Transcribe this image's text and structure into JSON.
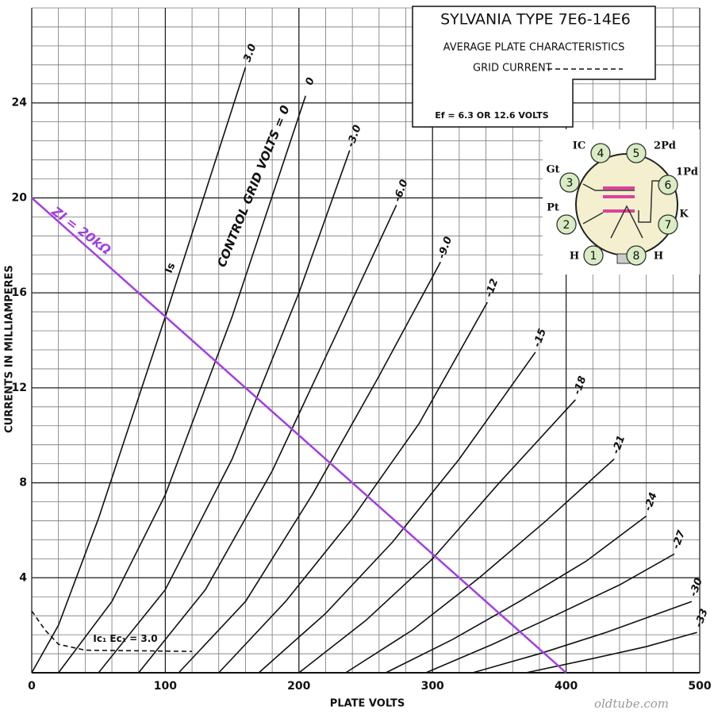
{
  "chart_data": {
    "type": "line",
    "title": "SYLVANIA TYPE 7E6-14E6",
    "subtitle": "AVERAGE PLATE CHARACTERISTICS",
    "grid_current_label": "GRID CURRENT",
    "heater_note": "Ef = 6.3 OR 12.6 VOLTS",
    "x_label": "PLATE VOLTS",
    "y_label": "CURRENTS IN MILLIAMPERES",
    "xlim": [
      0,
      500
    ],
    "ylim": [
      0,
      28
    ],
    "xticks": [
      0,
      100,
      200,
      300,
      400,
      500
    ],
    "yticks": [
      4,
      8,
      12,
      16,
      20,
      24
    ],
    "xminor": 20,
    "yminor": 0.8,
    "grid": true,
    "series": [
      {
        "name": "3.0",
        "color": "#111111",
        "x": [
          0,
          20,
          50,
          100,
          160
        ],
        "values": [
          0,
          2,
          6.5,
          15,
          25.5
        ]
      },
      {
        "name": "0",
        "color": "#111111",
        "x": [
          20,
          60,
          100,
          150,
          205
        ],
        "values": [
          0,
          3,
          7.5,
          15,
          24.3
        ]
      },
      {
        "name": "-3.0",
        "color": "#111111",
        "x": [
          50,
          100,
          150,
          200,
          238
        ],
        "values": [
          0,
          3.5,
          9,
          16,
          22
        ]
      },
      {
        "name": "-6.0",
        "color": "#111111",
        "x": [
          80,
          130,
          180,
          230,
          273
        ],
        "values": [
          0,
          3.5,
          8.5,
          14.5,
          19.7
        ]
      },
      {
        "name": "-9.0",
        "color": "#111111",
        "x": [
          110,
          160,
          210,
          260,
          306
        ],
        "values": [
          0,
          3,
          7.5,
          12.5,
          17.3
        ]
      },
      {
        "name": "-12",
        "color": "#111111",
        "x": [
          140,
          190,
          240,
          290,
          341
        ],
        "values": [
          0,
          3,
          6.5,
          10.5,
          15.6
        ]
      },
      {
        "name": "-15",
        "color": "#111111",
        "x": [
          170,
          220,
          270,
          320,
          377
        ],
        "values": [
          0,
          2.5,
          5.5,
          9,
          13.5
        ]
      },
      {
        "name": "-18",
        "color": "#111111",
        "x": [
          200,
          250,
          300,
          350,
          407
        ],
        "values": [
          0,
          2.2,
          4.8,
          8,
          11.5
        ]
      },
      {
        "name": "-21",
        "color": "#111111",
        "x": [
          235,
          285,
          335,
          385,
          436
        ],
        "values": [
          0,
          1.8,
          4,
          6.4,
          9
        ]
      },
      {
        "name": "-24",
        "color": "#111111",
        "x": [
          265,
          315,
          365,
          415,
          460
        ],
        "values": [
          0,
          1.4,
          3,
          4.7,
          6.6
        ]
      },
      {
        "name": "-27",
        "color": "#111111",
        "x": [
          295,
          345,
          395,
          440,
          481
        ],
        "values": [
          0,
          1.2,
          2.5,
          3.7,
          5
        ]
      },
      {
        "name": "-30",
        "color": "#111111",
        "x": [
          330,
          380,
          430,
          494
        ],
        "values": [
          0,
          0.8,
          1.7,
          3
        ]
      },
      {
        "name": "-33",
        "color": "#111111",
        "x": [
          370,
          420,
          460,
          498
        ],
        "values": [
          0,
          0.6,
          1.1,
          1.7
        ]
      }
    ],
    "grid_current": {
      "name": "Ic₁ Ec₁ = 3.0",
      "color": "#111111",
      "x": [
        0,
        10,
        20,
        40,
        120
      ],
      "values": [
        2.6,
        1.8,
        1.2,
        0.95,
        0.9
      ]
    },
    "load_line": {
      "name": "Zl = 20kΩ",
      "color": "#a040e0",
      "x": [
        0,
        400
      ],
      "values": [
        20,
        0
      ]
    },
    "annotations": [
      "CONTROL GRID VOLTS = 0",
      "Is"
    ]
  },
  "base_diagram": {
    "pins": [
      "1",
      "2",
      "3",
      "4",
      "5",
      "6",
      "7",
      "8"
    ],
    "labels": [
      "H",
      "Pt",
      "Gt",
      "IC",
      "2Pd",
      "1Pd",
      "K",
      "H"
    ]
  },
  "watermark": "oldtube.com"
}
